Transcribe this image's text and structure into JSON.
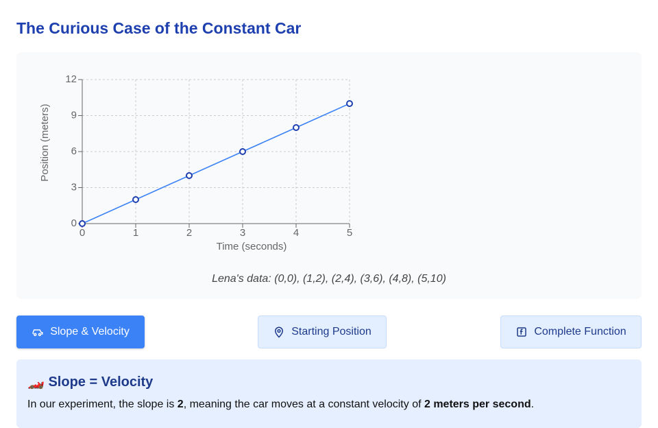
{
  "title": "The Curious Case of the Constant Car",
  "chart_data": {
    "type": "line",
    "x_label": "Time (seconds)",
    "y_label": "Position (meters)",
    "x": [
      0,
      1,
      2,
      3,
      4,
      5
    ],
    "values": [
      0,
      2,
      4,
      6,
      8,
      10
    ],
    "color": "#3b82f6",
    "xlim": [
      0,
      5
    ],
    "ylim": [
      0,
      12
    ],
    "xticks": [
      0,
      1,
      2,
      3,
      4,
      5
    ],
    "yticks": [
      0,
      3,
      6,
      9,
      12
    ],
    "grid": true
  },
  "caption": "Lena's data: (0,0), (1,2), (2,4), (3,6), (4,8), (5,10)",
  "buttons": [
    "Slope & Velocity",
    "Starting Position",
    "Complete Function"
  ],
  "panel": {
    "heading": "🏎️ Slope = Velocity",
    "paragraph": [
      {
        "text": "In our experiment, the slope is ",
        "bold": false
      },
      {
        "text": "2",
        "bold": true
      },
      {
        "text": ", meaning the car moves at a constant velocity of ",
        "bold": false
      },
      {
        "text": "2 meters per second",
        "bold": true
      },
      {
        "text": ".",
        "bold": false
      }
    ]
  }
}
